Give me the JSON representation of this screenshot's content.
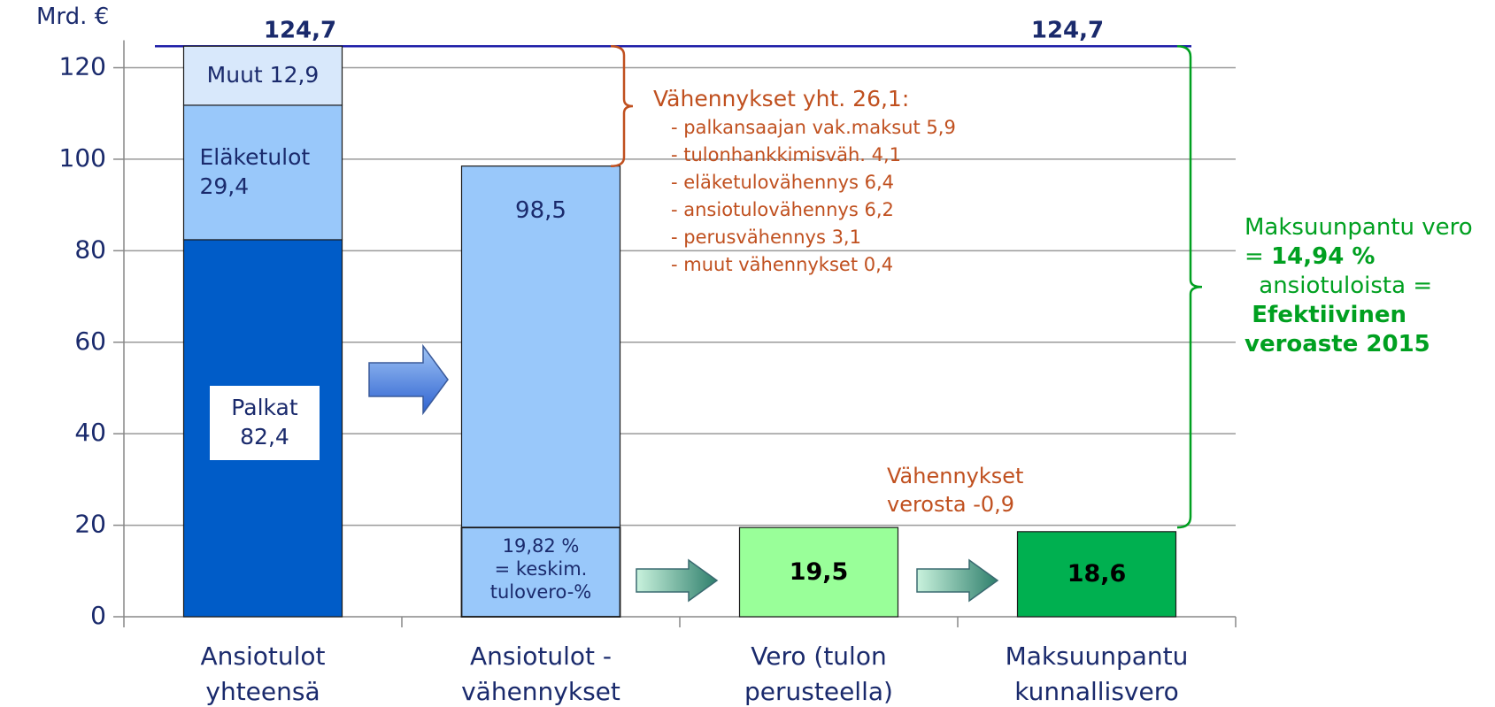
{
  "chart_data": {
    "type": "bar",
    "y_axis_label": "Mrd. €",
    "categories": [
      "Ansiotulot yhteensä",
      "Ansiotulot - vähennykset",
      "Vero (tulon perusteella)",
      "Maksuunpantu kunnallisvero"
    ],
    "ylim": [
      0,
      126
    ],
    "yticks": [
      0,
      20,
      40,
      60,
      80,
      100,
      120
    ],
    "grid": true,
    "total_line": {
      "value": 124.7,
      "label": "124,7",
      "color": "#1f1fa8"
    },
    "bars": [
      {
        "segments": [
          {
            "name": "Palkat",
            "value": 82.4,
            "value_label": "82,4",
            "color": "#005cc8"
          },
          {
            "name": "Eläketulot",
            "value": 29.4,
            "value_label": "29,4",
            "color": "#99c8fa"
          },
          {
            "name": "Muut",
            "value": 12.9,
            "value_label": "12,9",
            "color": "#d8e8fb"
          }
        ]
      },
      {
        "segments": [
          {
            "value": 98.5,
            "value_label": "98,5",
            "color": "#99c8fa"
          }
        ],
        "inset": {
          "value": 19.5,
          "lines": [
            "19,82 %",
            "= keskim.",
            "tulovero-%"
          ],
          "color": "#99c8fa"
        }
      },
      {
        "segments": [
          {
            "value": 19.5,
            "value_label": "19,5",
            "color": "#99ff99"
          }
        ]
      },
      {
        "segments": [
          {
            "value": 18.6,
            "value_label": "18,6",
            "color": "#00b050"
          }
        ]
      }
    ],
    "deductions": {
      "title": "Vähennykset yht. 26,1:",
      "items": [
        "- palkansaajan vak.maksut 5,9",
        "- tulonhankkimisväh. 4,1",
        "- eläketulovähennys 6,4",
        "- ansiotulovähennys 6,2",
        "- perusvähennys 3,1",
        "- muut vähennykset 0,4"
      ],
      "color": "#c0501f"
    },
    "tax_deductions": {
      "lines": [
        "Vähennykset",
        "verosta -0,9"
      ],
      "color": "#c0501f"
    },
    "effective_rate_note": {
      "text_1": "Maksuunpantu vero =",
      "highlight_1": "14,94 %",
      "text_2": "ansiotuloista =",
      "highlight_2": "Efektiivinen veroaste 2015",
      "color": "#00a020"
    }
  }
}
